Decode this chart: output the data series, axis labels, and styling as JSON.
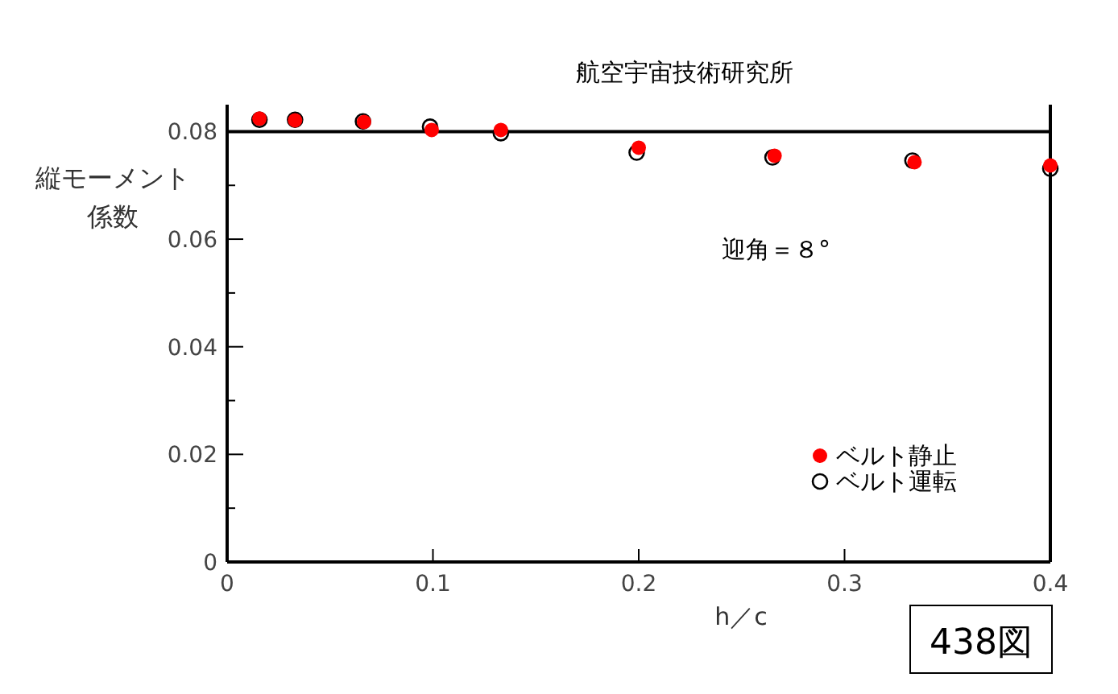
{
  "chart_data": {
    "type": "scatter",
    "title": "航空宇宙技術研究所",
    "xlabel": "h／c",
    "ylabel": "縦モーメント係数",
    "annotations": [
      "迎角＝８°",
      "438図"
    ],
    "series": [
      {
        "name": "ベルト静止",
        "color": "#ff0000",
        "marker": "circle",
        "x": [
          0.0157,
          0.033,
          0.0665,
          0.0994,
          0.133,
          0.2,
          0.266,
          0.334,
          0.4
        ],
        "values": [
          0.0824,
          0.0821,
          0.0818,
          0.0803,
          0.0803,
          0.077,
          0.0755,
          0.0743,
          0.0737
        ]
      },
      {
        "name": "ベルト運転",
        "color": "#000000",
        "marker": "open circle",
        "x": [
          0.0157,
          0.033,
          0.066,
          0.0986,
          0.133,
          0.199,
          0.265,
          0.333,
          0.4
        ],
        "values": [
          0.0822,
          0.0822,
          0.0819,
          0.0809,
          0.0797,
          0.0761,
          0.0752,
          0.0746,
          0.0731
        ]
      }
    ],
    "xlim": [
      0,
      0.4
    ],
    "ylim": [
      0,
      0.085
    ],
    "xticks": [
      0,
      0.1,
      0.2,
      0.3,
      0.4
    ],
    "yticks": [
      0,
      {
        "value": 0.01,
        "label": null
      },
      0.02,
      {
        "value": 0.03,
        "label": null
      },
      0.04,
      {
        "value": 0.05,
        "label": null
      },
      0.06,
      {
        "value": 0.07,
        "label": null
      },
      0.08
    ],
    "ref_lines": [
      {
        "axis": "y",
        "value": 0.08,
        "color": "#000000"
      }
    ],
    "grid": false,
    "legend": "bottom right"
  }
}
